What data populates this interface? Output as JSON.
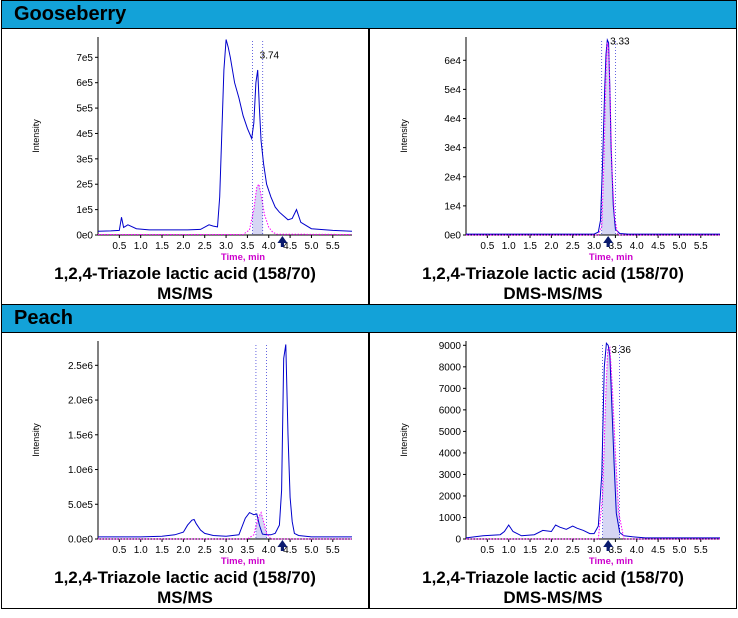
{
  "sections": [
    {
      "title": "Gooseberry"
    },
    {
      "title": "Peach"
    }
  ],
  "captions": {
    "compound": "1,2,4-Triazole lactic acid (158/70)",
    "msms": "MS/MS",
    "dms": "DMS-MS/MS"
  },
  "chart_data": [
    {
      "type": "line",
      "panel": "Gooseberry MS/MS",
      "xlabel": "Time, min",
      "ylabel": "Intensity",
      "xlim": [
        0.0,
        5.95
      ],
      "ylim": [
        0,
        780000
      ],
      "xticks": [
        0.5,
        1.0,
        1.5,
        2.0,
        2.5,
        3.0,
        3.5,
        4.0,
        4.5,
        5.0,
        5.5
      ],
      "yticks": [
        0,
        100000,
        200000,
        300000,
        400000,
        500000,
        600000,
        700000
      ],
      "ytick_labels": [
        "0e0",
        "1e5",
        "2e5",
        "3e5",
        "4e5",
        "5e5",
        "6e5",
        "7e5"
      ],
      "peak_label": "3.74",
      "peak_label_x": 3.74,
      "peak_label_y": 695000,
      "marker_x": 4.32,
      "integration": [
        3.62,
        3.86
      ],
      "series": [
        {
          "color": "#0000cc",
          "style": "solid",
          "x": [
            0.0,
            0.3,
            0.5,
            0.55,
            0.6,
            0.7,
            0.9,
            1.2,
            1.5,
            1.8,
            2.1,
            2.4,
            2.6,
            2.7,
            2.8,
            2.85,
            2.9,
            2.95,
            3.0,
            3.05,
            3.1,
            3.2,
            3.3,
            3.4,
            3.5,
            3.6,
            3.65,
            3.7,
            3.74,
            3.78,
            3.82,
            3.88,
            3.95,
            4.05,
            4.15,
            4.25,
            4.35,
            4.45,
            4.55,
            4.65,
            4.75,
            5.0,
            5.5,
            5.95
          ],
          "y": [
            15000,
            16000,
            18000,
            70000,
            30000,
            40000,
            25000,
            20000,
            20000,
            20000,
            20000,
            22000,
            40000,
            35000,
            32000,
            150000,
            400000,
            650000,
            770000,
            740000,
            700000,
            600000,
            540000,
            470000,
            420000,
            380000,
            440000,
            600000,
            650000,
            500000,
            370000,
            280000,
            200000,
            150000,
            110000,
            90000,
            75000,
            60000,
            65000,
            100000,
            50000,
            25000,
            18000,
            15000
          ]
        },
        {
          "color": "#ff00ff",
          "style": "dotted",
          "x": [
            0.0,
            3.4,
            3.55,
            3.65,
            3.72,
            3.77,
            3.83,
            3.9,
            4.0,
            4.1,
            4.2,
            5.95
          ],
          "y": [
            2000,
            2000,
            20000,
            100000,
            190000,
            200000,
            150000,
            80000,
            30000,
            10000,
            3000,
            2000
          ]
        }
      ]
    },
    {
      "type": "line",
      "panel": "Gooseberry DMS-MS/MS",
      "xlabel": "Time, min",
      "ylabel": "Intensity",
      "xlim": [
        0.0,
        5.95
      ],
      "ylim": [
        0,
        68000
      ],
      "xticks": [
        0.5,
        1.0,
        1.5,
        2.0,
        2.5,
        3.0,
        3.5,
        4.0,
        4.5,
        5.0,
        5.5
      ],
      "yticks": [
        0,
        10000,
        20000,
        30000,
        40000,
        50000,
        60000
      ],
      "ytick_labels": [
        "0e0",
        "1e4",
        "2e4",
        "3e4",
        "4e4",
        "5e4",
        "6e4"
      ],
      "peak_label": "3.33",
      "peak_label_x": 3.33,
      "peak_label_y": 65500,
      "marker_x": 3.33,
      "integration": [
        3.18,
        3.5
      ],
      "series": [
        {
          "color": "#0000cc",
          "style": "solid",
          "x": [
            0.0,
            1.0,
            2.0,
            2.8,
            3.0,
            3.1,
            3.15,
            3.2,
            3.25,
            3.28,
            3.31,
            3.34,
            3.37,
            3.4,
            3.45,
            3.5,
            3.6,
            3.8,
            5.95
          ],
          "y": [
            300,
            300,
            300,
            300,
            300,
            1000,
            5000,
            25000,
            50000,
            62000,
            67000,
            66000,
            50000,
            30000,
            10000,
            2000,
            500,
            300,
            300
          ]
        },
        {
          "color": "#ff00ff",
          "style": "dotted",
          "x": [
            0.0,
            3.1,
            3.18,
            3.23,
            3.28,
            3.31,
            3.34,
            3.38,
            3.42,
            3.48,
            3.56,
            5.95
          ],
          "y": [
            0,
            0,
            3000,
            25000,
            55000,
            66000,
            64000,
            45000,
            22000,
            6000,
            0,
            0
          ]
        }
      ]
    },
    {
      "type": "line",
      "panel": "Peach MS/MS",
      "xlabel": "Time, min",
      "ylabel": "Intensity",
      "xlim": [
        0.0,
        5.95
      ],
      "ylim": [
        0,
        2850000
      ],
      "xticks": [
        0.5,
        1.0,
        1.5,
        2.0,
        2.5,
        3.0,
        3.5,
        4.0,
        4.5,
        5.0,
        5.5
      ],
      "yticks": [
        0,
        500000,
        1000000,
        1500000,
        2000000,
        2500000
      ],
      "ytick_labels": [
        "0.0e0",
        "5.0e5",
        "1.0e6",
        "1.5e6",
        "2.0e6",
        "2.5e6"
      ],
      "marker_x": 4.32,
      "integration": [
        3.7,
        3.95
      ],
      "series": [
        {
          "color": "#0000cc",
          "style": "solid",
          "x": [
            0.0,
            0.5,
            1.0,
            1.5,
            1.8,
            2.0,
            2.1,
            2.2,
            2.25,
            2.3,
            2.4,
            2.5,
            2.7,
            3.0,
            3.3,
            3.45,
            3.55,
            3.65,
            3.72,
            3.78,
            3.85,
            3.95,
            4.05,
            4.15,
            4.25,
            4.3,
            4.35,
            4.4,
            4.45,
            4.5,
            4.55,
            4.6,
            4.7,
            5.0,
            5.95
          ],
          "y": [
            30000,
            30000,
            30000,
            40000,
            60000,
            100000,
            200000,
            270000,
            280000,
            220000,
            130000,
            80000,
            50000,
            40000,
            60000,
            300000,
            380000,
            350000,
            360000,
            200000,
            70000,
            60000,
            60000,
            80000,
            200000,
            700000,
            2600000,
            2800000,
            1500000,
            600000,
            250000,
            80000,
            50000,
            30000,
            30000
          ]
        },
        {
          "color": "#ff00ff",
          "style": "dotted",
          "x": [
            0.0,
            3.5,
            3.65,
            3.75,
            3.82,
            3.88,
            3.95,
            4.05,
            5.95
          ],
          "y": [
            0,
            0,
            60000,
            300000,
            380000,
            250000,
            80000,
            0,
            0
          ]
        }
      ]
    },
    {
      "type": "line",
      "panel": "Peach DMS-MS/MS",
      "xlabel": "Time, min",
      "ylabel": "Intensity",
      "xlim": [
        0.0,
        5.95
      ],
      "ylim": [
        0,
        9200
      ],
      "xticks": [
        0.5,
        1.0,
        1.5,
        2.0,
        2.5,
        3.0,
        3.5,
        4.0,
        4.5,
        5.0,
        5.5
      ],
      "yticks": [
        0,
        1000,
        2000,
        3000,
        4000,
        5000,
        6000,
        7000,
        8000,
        9000
      ],
      "ytick_labels": [
        "0",
        "1000",
        "2000",
        "3000",
        "4000",
        "5000",
        "6000",
        "7000",
        "8000",
        "9000"
      ],
      "peak_label": "3.36",
      "peak_label_x": 3.36,
      "peak_label_y": 8650,
      "marker_x": 3.33,
      "integration": [
        3.2,
        3.6
      ],
      "series": [
        {
          "color": "#0000cc",
          "style": "solid",
          "x": [
            0.0,
            0.4,
            0.8,
            0.9,
            1.0,
            1.1,
            1.3,
            1.6,
            1.8,
            2.0,
            2.1,
            2.2,
            2.35,
            2.5,
            2.6,
            2.75,
            2.9,
            3.0,
            3.1,
            3.18,
            3.24,
            3.29,
            3.33,
            3.37,
            3.42,
            3.47,
            3.52,
            3.6,
            3.7,
            3.9,
            4.2,
            5.0,
            5.95
          ],
          "y": [
            50,
            150,
            200,
            350,
            650,
            350,
            150,
            200,
            400,
            350,
            650,
            550,
            450,
            600,
            500,
            400,
            250,
            250,
            600,
            3000,
            8000,
            9100,
            9000,
            8500,
            6000,
            3500,
            1200,
            300,
            150,
            100,
            50,
            50,
            50
          ]
        },
        {
          "color": "#ff00ff",
          "style": "dotted",
          "x": [
            0.0,
            3.1,
            3.2,
            3.27,
            3.32,
            3.37,
            3.43,
            3.5,
            3.58,
            3.7,
            5.95
          ],
          "y": [
            0,
            0,
            2000,
            6500,
            8800,
            8900,
            7000,
            4000,
            1200,
            0,
            0
          ]
        }
      ]
    }
  ]
}
